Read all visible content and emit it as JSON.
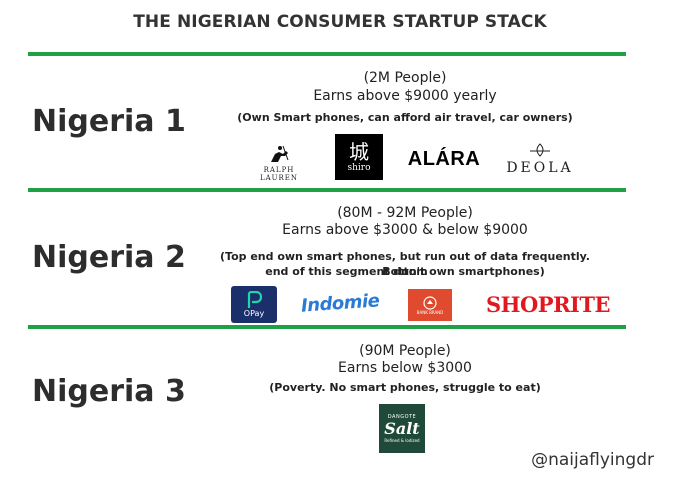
{
  "title": "THE NIGERIAN CONSUMER STARTUP STACK",
  "tiers": [
    {
      "label": "Nigeria 1",
      "people": "(2M People)",
      "earnings": "Earns above $9000 yearly",
      "note": "(Own Smart phones, can afford air travel, car owners)",
      "logos": [
        {
          "icon": "polo-player-icon",
          "line1": "RALPH",
          "line2": "LAUREN"
        },
        {
          "icon": "shiro-kanji-icon",
          "glyph": "城",
          "text": "shiro"
        },
        {
          "text": "ALÁRA"
        },
        {
          "icon": "deola-emblem-icon",
          "text": "DEOLA"
        }
      ]
    },
    {
      "label": "Nigeria 2",
      "people": "(80M - 92M People)",
      "earnings": "Earns above $3000 & below $9000",
      "note_line1": "(Top end own smart phones, but run out of data frequently. Bottom",
      "note_line2": "end of this segment don't own smartphones)",
      "logos": [
        {
          "icon": "opay-p-icon",
          "text": "OPay"
        },
        {
          "text": "Indomie"
        },
        {
          "icon": "bank-emblem-icon",
          "text": "BANK BRAND"
        },
        {
          "text": "SHOPRITE"
        }
      ]
    },
    {
      "label": "Nigeria 3",
      "people": "(90M People)",
      "earnings": "Earns below $3000",
      "note": "(Poverty. No smart phones, struggle to eat)",
      "logos": [
        {
          "top": "DANGOTE",
          "text": "Salt",
          "bottom": "Refined & Iodized"
        }
      ]
    }
  ],
  "handle": "@naijaflyingdr",
  "colors": {
    "divider": "#1fa045",
    "opay": "#1b2f6b",
    "shoprite": "#e0191f",
    "indomie": "#2a7bd3",
    "bank": "#e04a2e",
    "salt_bg": "#1f4a3a"
  }
}
